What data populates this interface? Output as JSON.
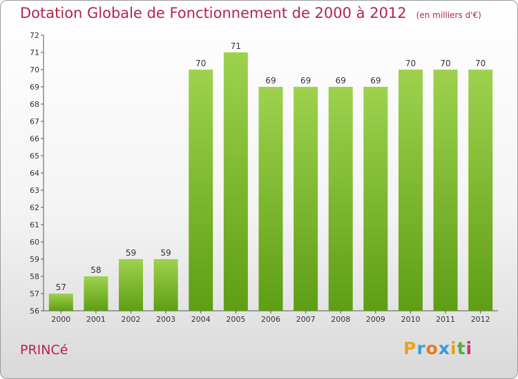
{
  "header": {
    "title": "Dotation Globale de Fonctionnement de 2000 à 2012",
    "unit": "(en milliers d'€)"
  },
  "footer": {
    "commune": "PRINCé",
    "logo_parts": [
      "P",
      "r",
      "o",
      "x",
      "i",
      "t",
      "i"
    ]
  },
  "colors": {
    "title": "#b5234a",
    "bar_light": "#9ed24e",
    "bar_dark": "#5e9e14"
  },
  "chart_data": {
    "type": "bar",
    "title": "Dotation Globale de Fonctionnement de 2000 à 2012",
    "xlabel": "",
    "ylabel": "",
    "categories": [
      "2000",
      "2001",
      "2002",
      "2003",
      "2004",
      "2005",
      "2006",
      "2007",
      "2008",
      "2009",
      "2010",
      "2011",
      "2012"
    ],
    "values": [
      57,
      58,
      59,
      59,
      70,
      71,
      69,
      69,
      69,
      69,
      70,
      70,
      70
    ],
    "ylim": [
      56,
      72
    ],
    "yticks": [
      56,
      57,
      58,
      59,
      60,
      61,
      62,
      63,
      64,
      65,
      66,
      67,
      68,
      69,
      70,
      71,
      72
    ],
    "grid": false,
    "legend": "none"
  }
}
